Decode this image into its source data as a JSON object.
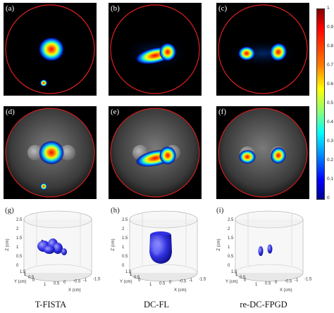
{
  "panels": {
    "a": "(a)",
    "b": "(b)",
    "c": "(c)",
    "d": "(d)",
    "e": "(e)",
    "f": "(f)",
    "g": "(g)",
    "h": "(h)",
    "i": "(i)"
  },
  "captions": [
    "T-FISTA",
    "DC-FL",
    "re-DC-FPGD"
  ],
  "colorbar": {
    "ticks": [
      "1",
      "0.9",
      "0.8",
      "0.7",
      "0.6",
      "0.5",
      "0.4",
      "0.3",
      "0.2",
      "0.1",
      "0"
    ],
    "colors": [
      "#7f0000",
      "#ff0000",
      "#ff8000",
      "#ffff00",
      "#80ff80",
      "#00ffff",
      "#0080ff",
      "#0000ff",
      "#00008f"
    ]
  },
  "volume_axes": {
    "z_label": "Z (cm)",
    "y_label": "Y (cm)",
    "x_label": "X (cm)",
    "z_ticks": [
      "2.5",
      "2",
      "1.5",
      "1",
      "0.5",
      "0"
    ],
    "x_ticks": [
      "1",
      "0.5",
      "0",
      "-0.5",
      "-1",
      "-1.5"
    ],
    "y_ticks": [
      "1.5",
      "1",
      "0.5",
      "0",
      "-0.5",
      "-1",
      "-1.5"
    ]
  }
}
